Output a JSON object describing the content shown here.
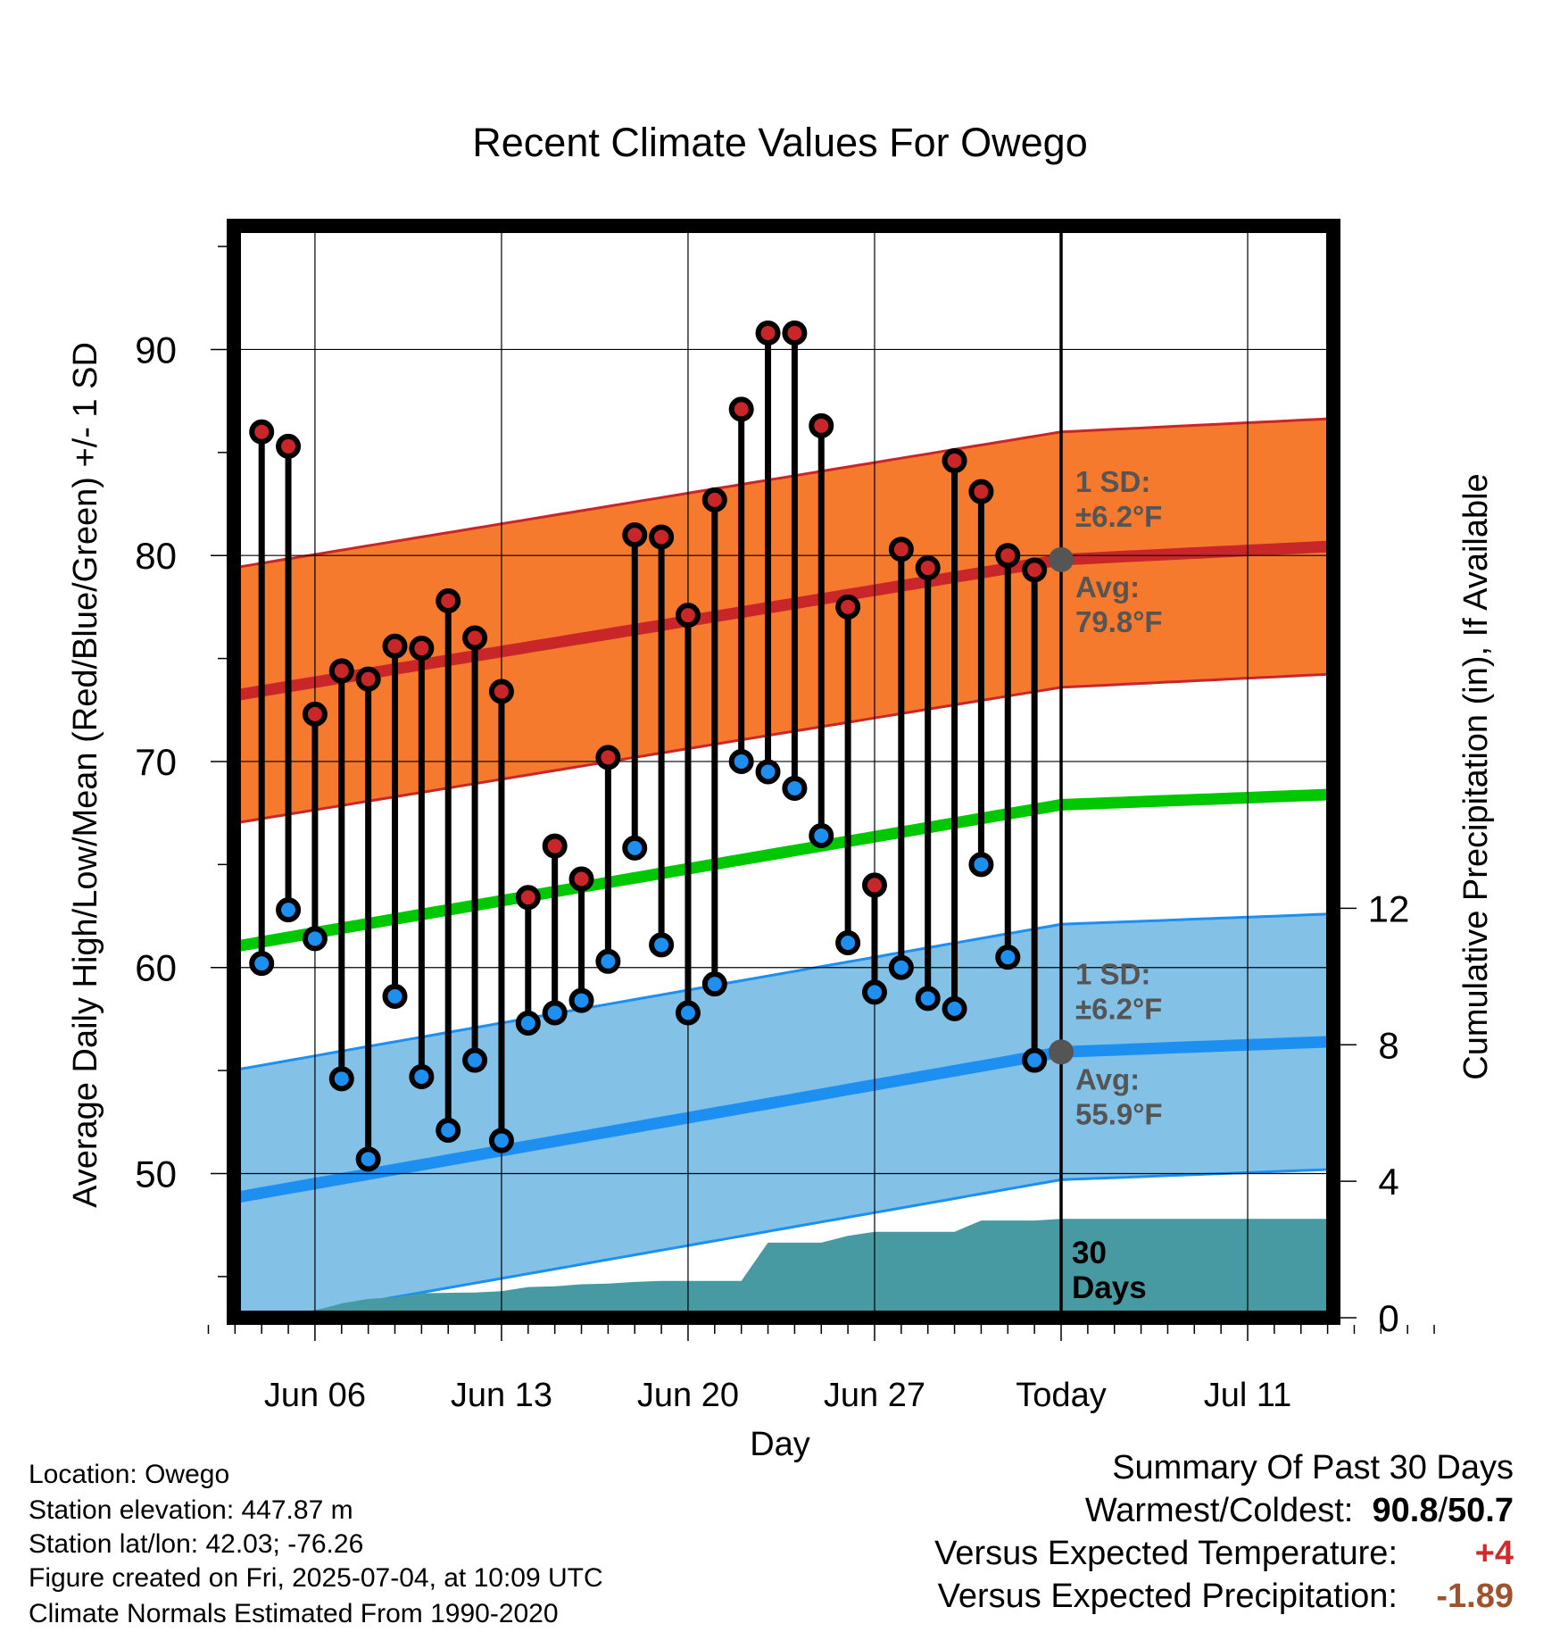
{
  "chart_data": {
    "type": "line",
    "title": "Recent Climate Values For Owego",
    "xlabel": "Day",
    "ylabel": "Average Daily High/Low/Mean (Red/Blue/Green) +/- 1 SD",
    "y2label": "Cumulative Precipitation (in), If Available",
    "ylim": [
      43,
      96
    ],
    "y2lim": [
      0,
      32
    ],
    "y_ticks": [
      50,
      60,
      70,
      80,
      90
    ],
    "y2_ticks": [
      0,
      4,
      8,
      12
    ],
    "x_range_days": [
      -32,
      14.2
    ],
    "x_ticks": [
      {
        "day": -28,
        "label": "Jun 06"
      },
      {
        "day": -21,
        "label": "Jun 13"
      },
      {
        "day": -14,
        "label": "Jun 20"
      },
      {
        "day": -7,
        "label": "Jun 27"
      },
      {
        "day": 0,
        "label": "Today"
      },
      {
        "day": 7,
        "label": "Jul 11"
      }
    ],
    "grid": true,
    "daily_highs": [
      86.0,
      85.3,
      72.3,
      74.4,
      74.0,
      75.6,
      75.5,
      77.8,
      76.0,
      73.4,
      63.4,
      65.9,
      64.3,
      70.2,
      81.0,
      80.9,
      77.1,
      82.7,
      87.1,
      90.8,
      90.8,
      86.3,
      77.5,
      64.0,
      80.3,
      79.4,
      84.6,
      83.1,
      80.0,
      79.3
    ],
    "daily_lows": [
      60.2,
      62.8,
      61.4,
      54.6,
      50.7,
      58.6,
      54.7,
      52.1,
      55.5,
      51.6,
      57.3,
      57.8,
      58.4,
      60.3,
      65.8,
      61.1,
      57.8,
      59.2,
      70.0,
      69.5,
      68.7,
      66.4,
      61.2,
      58.8,
      60.0,
      58.5,
      58.0,
      65.0,
      60.5,
      55.5
    ],
    "normal_high": {
      "x": [
        -32,
        0,
        14.2
      ],
      "avg": [
        73.0,
        79.8,
        80.7
      ],
      "sd": 6.2
    },
    "normal_low": {
      "x": [
        -32,
        0,
        14.2
      ],
      "avg": [
        48.6,
        55.9,
        56.6
      ],
      "sd": 6.2
    },
    "normal_mean": {
      "x": [
        -32,
        0,
        14.2
      ],
      "values": [
        60.8,
        67.9,
        68.6
      ]
    },
    "precip_cumulative": {
      "x": [
        -32,
        -29,
        -27,
        -26,
        -25,
        -24,
        -23,
        -22,
        -21,
        -20,
        -19,
        -18,
        -17,
        -16,
        -15,
        -14,
        -13,
        -12,
        -11,
        -10,
        -9,
        -8,
        -7,
        -6,
        -5,
        -4,
        -3,
        -2,
        -1,
        0,
        14.2
      ],
      "values": [
        0,
        0,
        0.42,
        0.55,
        0.6,
        0.72,
        0.73,
        0.74,
        0.78,
        0.9,
        0.92,
        0.98,
        1.0,
        1.05,
        1.08,
        1.08,
        1.08,
        1.08,
        2.2,
        2.2,
        2.2,
        2.4,
        2.52,
        2.52,
        2.52,
        2.52,
        2.85,
        2.85,
        2.85,
        2.9,
        2.9
      ]
    },
    "annotations": {
      "high_sd_label": "1 SD:",
      "high_sd_value": "±6.2°F",
      "high_avg_label": "Avg:",
      "high_avg_value": "79.8°F",
      "low_sd_label": "1 SD:",
      "low_sd_value": "±6.2°F",
      "low_avg_label": "Avg:",
      "low_avg_value": "55.9°F",
      "window_label_1": "30",
      "window_label_2": "Days"
    },
    "colors": {
      "high_point": "#c9262a",
      "low_point": "#1d8ff0",
      "high_band": "#f57a2e",
      "high_line": "#c9262a",
      "low_band": "#84c1e7",
      "low_line": "#1d8ff0",
      "mean_line": "#00c800",
      "precip": "#489aa2",
      "annotation": "#555555"
    }
  },
  "footer": {
    "location": "Location: Owego",
    "elevation": "Station elevation: 447.87 m",
    "latlon": "Station lat/lon: 42.03; -76.26",
    "created": "Figure created on Fri, 2025-07-04, at 10:09 UTC",
    "normals": "Climate Normals Estimated From 1990-2020"
  },
  "summary": {
    "heading": "Summary Of Past 30 Days",
    "warm_cold_label": "Warmest/Coldest:",
    "warmest": "90.8",
    "coldest": "50.7",
    "temp_label": "Versus Expected Temperature:",
    "temp_value": "+4",
    "precip_label": "Versus Expected Precipitation:",
    "precip_value": "-1.89"
  }
}
